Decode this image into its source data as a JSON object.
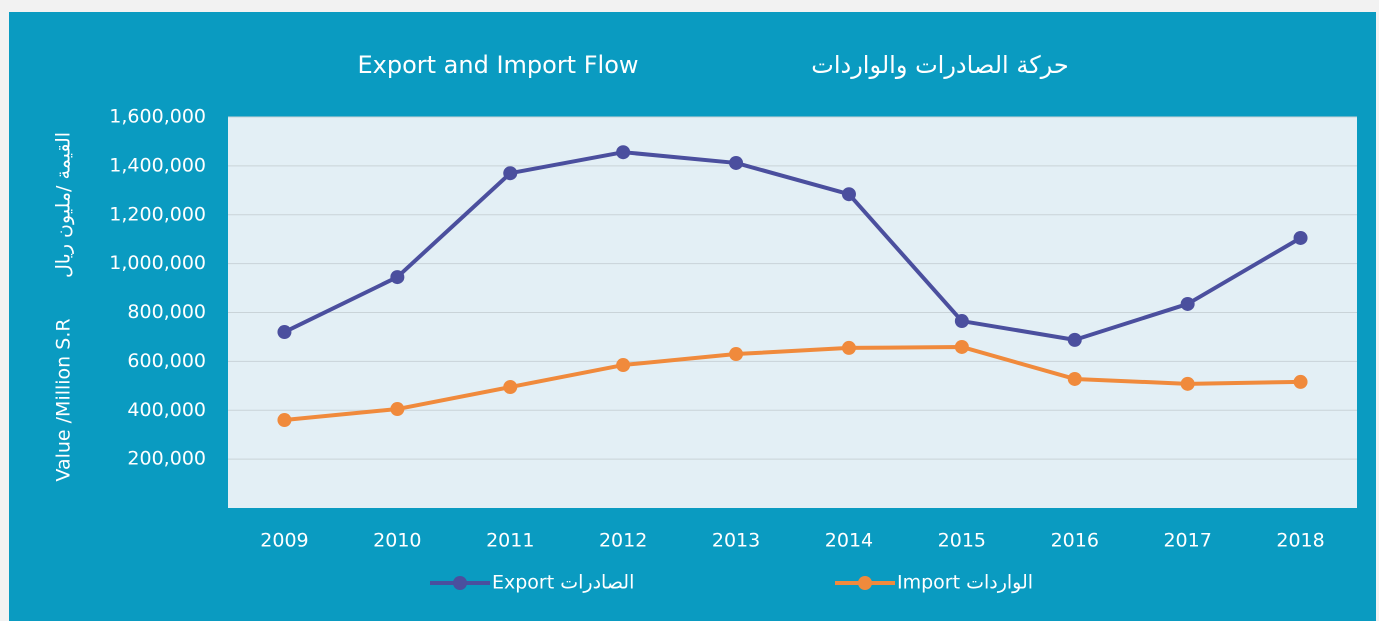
{
  "chart_data": {
    "type": "line",
    "title": "Export and Import Flow",
    "title_ar": "حركة الصادرات والواردات",
    "y_label_ar": "القيمة /مليون ريال",
    "y_label": "Value /Million S.R",
    "categories": [
      "2009",
      "2010",
      "2011",
      "2012",
      "2013",
      "2014",
      "2015",
      "2016",
      "2017",
      "2018"
    ],
    "series": [
      {
        "name": "الصادرات Export",
        "color": "#4b4f9e",
        "values": [
          720000,
          945000,
          1370000,
          1456000,
          1412000,
          1284000,
          765000,
          688000,
          835000,
          1105000
        ]
      },
      {
        "name": "الواردات Import",
        "color": "#f08a3c",
        "values": [
          360000,
          405000,
          495000,
          585000,
          630000,
          655000,
          659000,
          528000,
          508000,
          516000
        ]
      }
    ],
    "ylim": [
      0,
      1600000
    ],
    "yticks": [
      {
        "value": 200000,
        "label": "200,000"
      },
      {
        "value": 400000,
        "label": "400,000"
      },
      {
        "value": 600000,
        "label": "600,000"
      },
      {
        "value": 800000,
        "label": "800,000"
      },
      {
        "value": 1000000,
        "label": "1,000,000"
      },
      {
        "value": 1200000,
        "label": "1,200,000"
      },
      {
        "value": 1400000,
        "label": "1,400,000"
      },
      {
        "value": 1600000,
        "label": "1,600,000"
      }
    ],
    "grid": true
  }
}
